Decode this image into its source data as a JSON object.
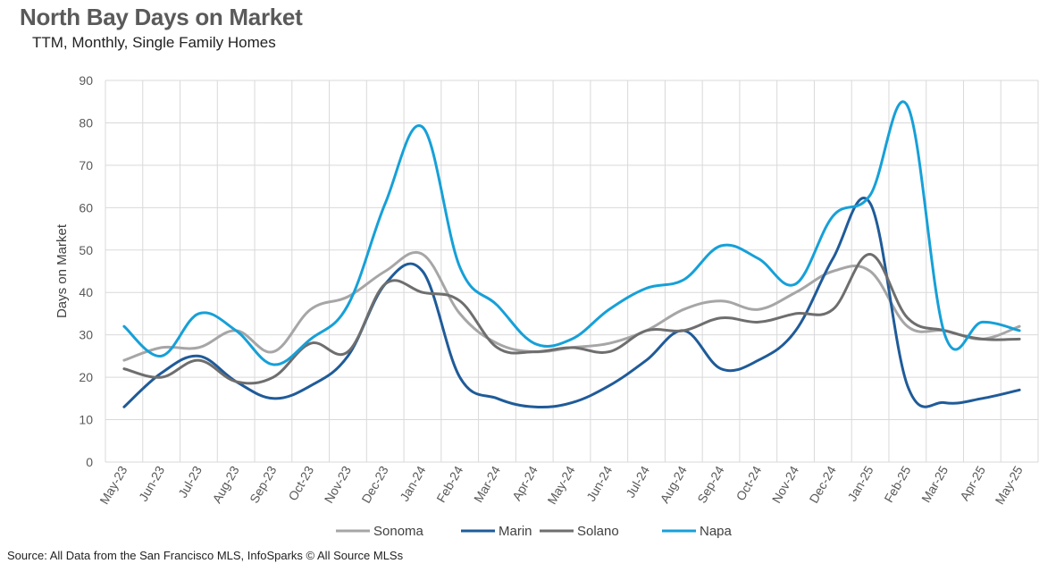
{
  "title": "North Bay Days on Market",
  "subtitle": "TTM, Monthly, Single Family Homes",
  "source": "Source: All Data from the San Francisco MLS, InfoSparks © All Source MLSs",
  "chart_data": {
    "type": "line",
    "title": "North Bay Days on Market",
    "subtitle": "TTM, Monthly, Single Family Homes",
    "xlabel": "",
    "ylabel": "Days on Market",
    "ylim": [
      0,
      90
    ],
    "yticks": [
      0,
      10,
      20,
      30,
      40,
      50,
      60,
      70,
      80,
      90
    ],
    "grid": true,
    "legend": "bottom",
    "categories": [
      "May-23",
      "Jun-23",
      "Jul-23",
      "Aug-23",
      "Sep-23",
      "Oct-23",
      "Nov-23",
      "Dec-23",
      "Jan-24",
      "Feb-24",
      "Mar-24",
      "Apr-24",
      "May-24",
      "Jun-24",
      "Jul-24",
      "Aug-24",
      "Sep-24",
      "Oct-24",
      "Nov-24",
      "Dec-24",
      "Jan-25",
      "Feb-25",
      "Mar-25",
      "Apr-25",
      "May-25"
    ],
    "series": [
      {
        "name": "Sonoma",
        "color": "#a6a6a6",
        "values": [
          24,
          27,
          27,
          31,
          26,
          36,
          39,
          45,
          49,
          35,
          28,
          26,
          27,
          28,
          31,
          36,
          38,
          36,
          40,
          45,
          45,
          32,
          31,
          29,
          32
        ]
      },
      {
        "name": "Marin",
        "color": "#1f5b99",
        "values": [
          13,
          21,
          25,
          19,
          15,
          18,
          25,
          42,
          45,
          20,
          15,
          13,
          14,
          18,
          24,
          31,
          22,
          24,
          31,
          48,
          61,
          18,
          14,
          15,
          17
        ]
      },
      {
        "name": "Solano",
        "color": "#6e6e6e",
        "values": [
          22,
          20,
          24,
          19,
          20,
          28,
          26,
          42,
          40,
          38,
          27,
          26,
          27,
          26,
          31,
          31,
          34,
          33,
          35,
          36,
          49,
          34,
          31,
          29,
          29
        ]
      },
      {
        "name": "Napa",
        "color": "#16a0d8",
        "values": [
          32,
          25,
          35,
          31,
          23,
          29,
          37,
          61,
          79,
          46,
          37,
          28,
          29,
          36,
          41,
          43,
          51,
          48,
          42,
          58,
          63,
          84,
          30,
          33,
          31
        ]
      }
    ]
  }
}
